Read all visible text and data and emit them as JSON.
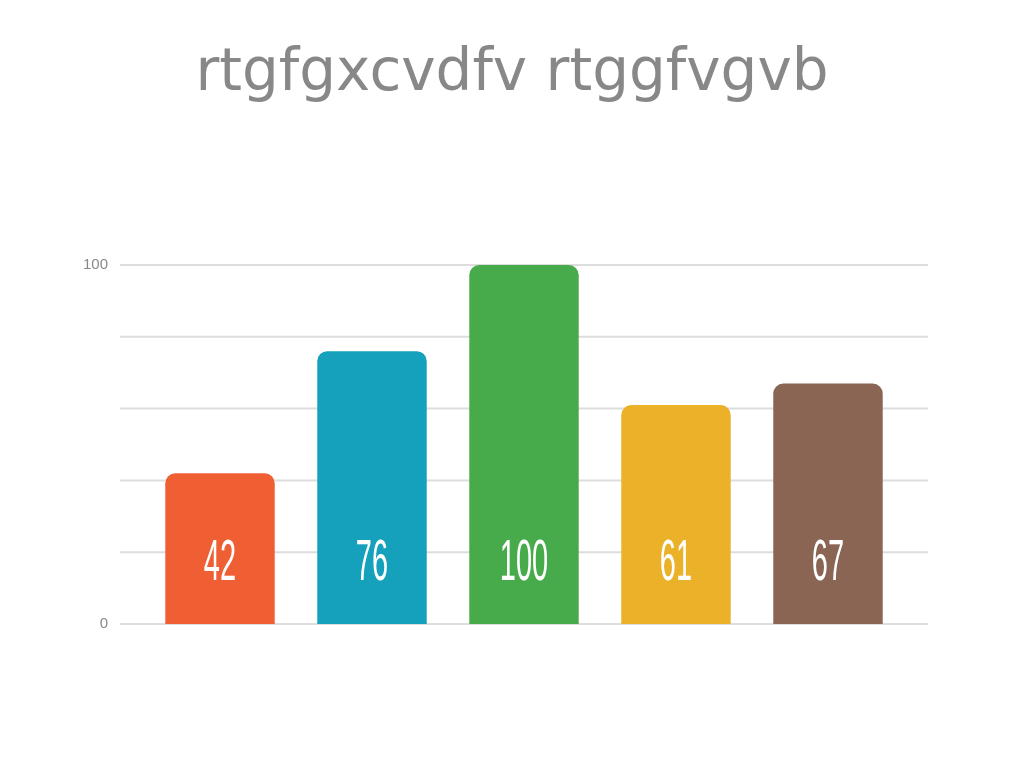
{
  "chart_data": {
    "type": "bar",
    "title": "rtgfgxcvdfv rtggfvgvb",
    "categories": [
      null,
      null,
      null,
      null,
      null
    ],
    "values": [
      42,
      76,
      100,
      61,
      67
    ],
    "colors": [
      "#f05f33",
      "#15a0bc",
      "#48ab4b",
      "#ebb128",
      "#8a6553"
    ],
    "ylim": [
      0,
      100
    ],
    "yticks": [
      0,
      {
        "value": 20,
        "label": null
      },
      {
        "value": 40,
        "label": null
      },
      {
        "value": 60,
        "label": null
      },
      {
        "value": 80,
        "label": null
      },
      100
    ],
    "grid": "y",
    "data_labels": true
  }
}
